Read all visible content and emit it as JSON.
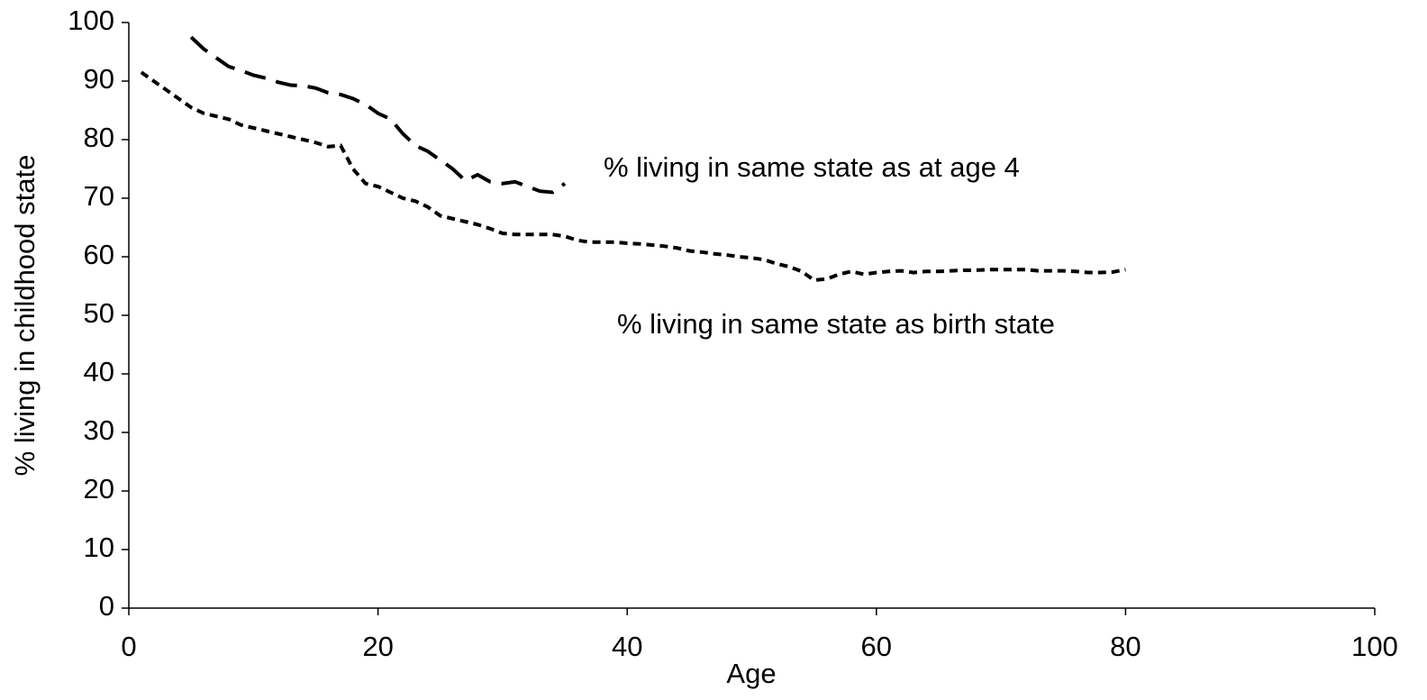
{
  "chart_data": {
    "type": "line",
    "xlabel": "Age",
    "ylabel": "% living in childhood state",
    "xlim": [
      0,
      100
    ],
    "xticks": [
      0,
      20,
      40,
      60,
      80,
      100
    ],
    "ylim": [
      0,
      100
    ],
    "yticks": [
      0,
      10,
      20,
      30,
      40,
      50,
      60,
      70,
      80,
      90,
      100
    ],
    "series": [
      {
        "name": "% living in same state as at age 4",
        "color": "#000000",
        "linestyle": "long-dash",
        "x": [
          5,
          6,
          7,
          8,
          9,
          10,
          11,
          12,
          13,
          14,
          15,
          16,
          17,
          18,
          19,
          20,
          21,
          22,
          23,
          24,
          25,
          26,
          27,
          28,
          29,
          30,
          31,
          32,
          33,
          34,
          35
        ],
        "values": [
          97.5,
          95.5,
          94,
          92.5,
          91.8,
          91,
          90.5,
          89.8,
          89.3,
          89.2,
          88.8,
          88,
          87.7,
          87,
          86,
          84.5,
          83.5,
          81,
          79,
          78,
          76.5,
          75,
          73,
          74,
          72.8,
          72.5,
          72.8,
          72,
          71.2,
          71,
          72.5
        ]
      },
      {
        "name": "% living in same state as birth state",
        "color": "#000000",
        "linestyle": "short-dash",
        "x": [
          1,
          2,
          3,
          4,
          5,
          6,
          7,
          8,
          9,
          10,
          11,
          12,
          13,
          14,
          15,
          16,
          17,
          18,
          19,
          20,
          21,
          22,
          23,
          24,
          25,
          26,
          27,
          28,
          29,
          30,
          31,
          32,
          33,
          34,
          35,
          36,
          37,
          38,
          39,
          40,
          41,
          42,
          43,
          44,
          45,
          46,
          47,
          48,
          49,
          50,
          51,
          52,
          53,
          54,
          55,
          56,
          57,
          58,
          59,
          60,
          61,
          62,
          63,
          64,
          65,
          66,
          67,
          68,
          69,
          70,
          71,
          72,
          73,
          74,
          75,
          76,
          77,
          78,
          79,
          80
        ],
        "values": [
          91.5,
          90,
          88.5,
          87,
          85.5,
          84.5,
          84,
          83.5,
          82.5,
          82,
          81.5,
          81,
          80.5,
          80,
          79.5,
          78.8,
          79,
          75,
          72.5,
          72,
          71,
          70,
          69.5,
          68.5,
          67,
          66.5,
          66,
          65.5,
          64.8,
          64,
          63.8,
          63.8,
          63.8,
          63.8,
          63.5,
          62.8,
          62.5,
          62.5,
          62.5,
          62.3,
          62.2,
          62,
          61.8,
          61.5,
          61,
          60.8,
          60.5,
          60.3,
          60,
          59.8,
          59.5,
          58.8,
          58.3,
          57.5,
          56,
          56.2,
          57,
          57.5,
          57,
          57.3,
          57.5,
          57.6,
          57.3,
          57.5,
          57.5,
          57.6,
          57.7,
          57.7,
          57.8,
          57.8,
          57.8,
          57.8,
          57.6,
          57.6,
          57.6,
          57.5,
          57.3,
          57.3,
          57.4,
          57.8
        ]
      }
    ]
  }
}
